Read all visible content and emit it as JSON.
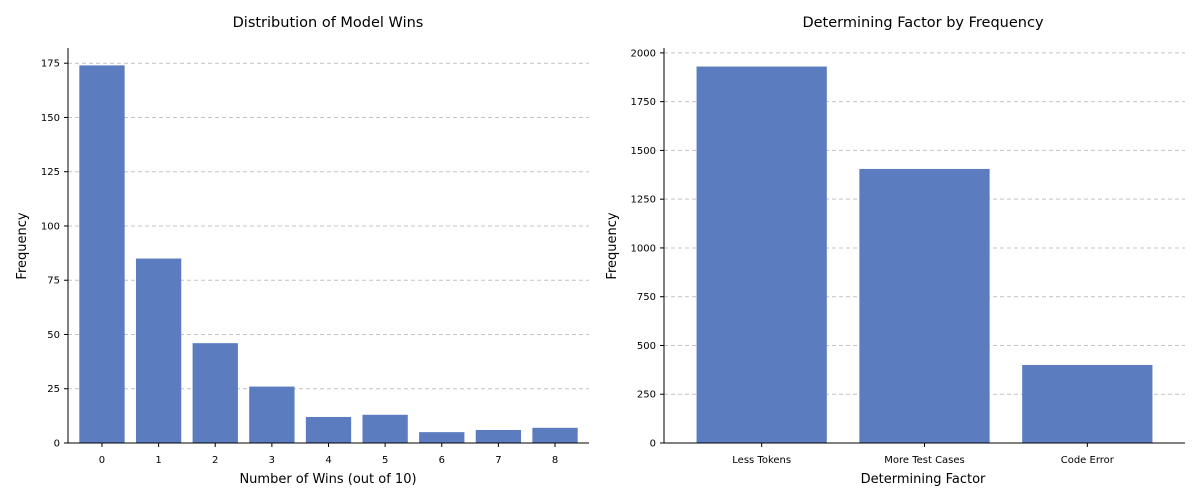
{
  "chart_data": [
    {
      "type": "bar",
      "title": "Distribution of Model Wins",
      "xlabel": "Number of Wins (out of 10)",
      "ylabel": "Frequency",
      "categories": [
        "0",
        "1",
        "2",
        "3",
        "4",
        "5",
        "6",
        "7",
        "8"
      ],
      "values": [
        174,
        85,
        46,
        26,
        12,
        13,
        5,
        6,
        7
      ],
      "ylim": [
        0,
        182
      ],
      "yticks": [
        0,
        25,
        50,
        75,
        100,
        125,
        150,
        175
      ],
      "grid": "y-dashed",
      "color": "#5b7dbf"
    },
    {
      "type": "bar",
      "title": "Determining Factor by Frequency",
      "xlabel": "Determining Factor",
      "ylabel": "Frequency",
      "categories": [
        "Less Tokens",
        "More Test Cases",
        "Code Error"
      ],
      "values": [
        1930,
        1405,
        400
      ],
      "ylim": [
        0,
        2025
      ],
      "yticks": [
        0,
        250,
        500,
        750,
        1000,
        1250,
        1500,
        1750,
        2000
      ],
      "grid": "y-dashed",
      "color": "#5b7dbf"
    }
  ]
}
